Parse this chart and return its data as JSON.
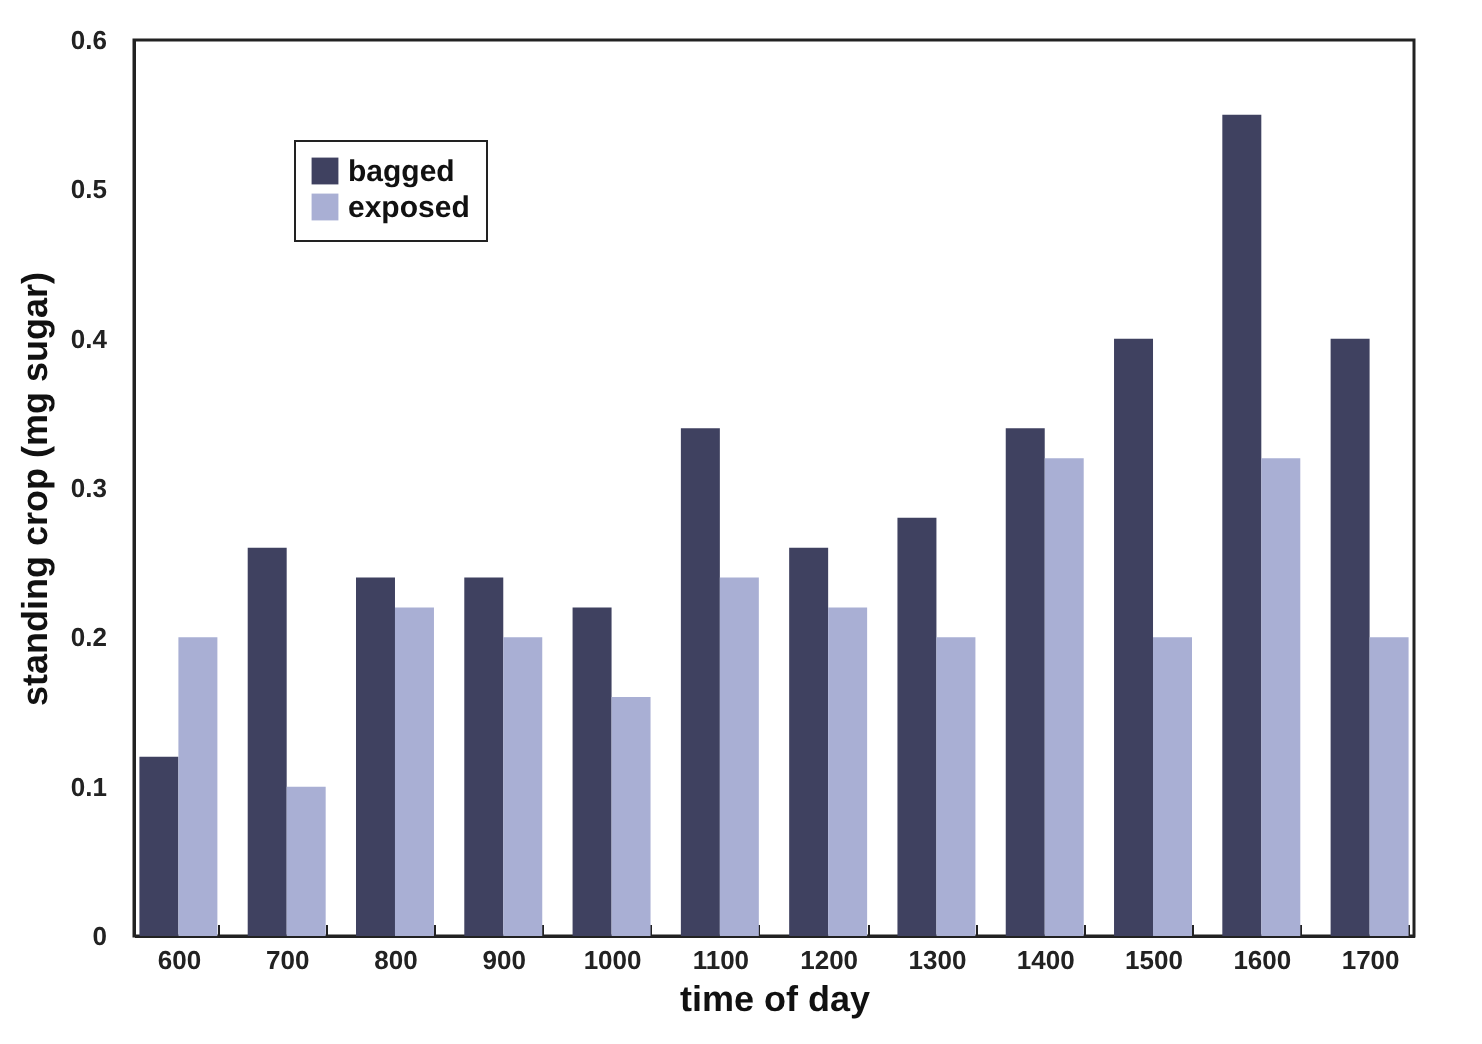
{
  "chart_data": {
    "type": "bar",
    "xlabel": "time of day",
    "ylabel": "standing crop (mg sugar)",
    "categories": [
      "600",
      "700",
      "800",
      "900",
      "1000",
      "1100",
      "1200",
      "1300",
      "1400",
      "1500",
      "1600",
      "1700"
    ],
    "series": [
      {
        "name": "bagged",
        "color": "#3f4160",
        "values": [
          0.12,
          0.26,
          0.24,
          0.24,
          0.22,
          0.34,
          0.26,
          0.28,
          0.34,
          0.4,
          0.55,
          0.4
        ]
      },
      {
        "name": "exposed",
        "color": "#a9afd4",
        "values": [
          0.2,
          0.1,
          0.22,
          0.2,
          0.16,
          0.24,
          0.22,
          0.2,
          0.32,
          0.2,
          0.32,
          0.2
        ]
      }
    ],
    "ylim": [
      0,
      0.6
    ],
    "yticks": [
      0,
      0.1,
      0.2,
      0.3,
      0.4,
      0.5,
      0.6
    ],
    "grid": false,
    "legend": "top left"
  }
}
